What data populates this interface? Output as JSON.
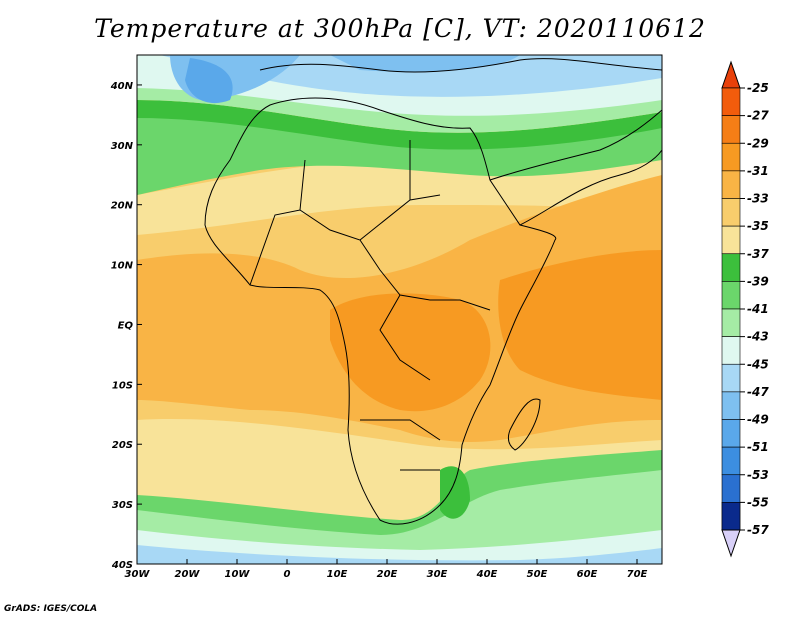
{
  "title": "Temperature at 300hPa [C], VT: 2020110612",
  "credit": "GrADS: IGES/COLA",
  "map": {
    "lon_range": [
      -30,
      75
    ],
    "lat_range": [
      -40,
      45
    ],
    "lon_ticks": [
      {
        "value": -30,
        "label": "30W"
      },
      {
        "value": -20,
        "label": "20W"
      },
      {
        "value": -10,
        "label": "10W"
      },
      {
        "value": 0,
        "label": "0"
      },
      {
        "value": 10,
        "label": "10E"
      },
      {
        "value": 20,
        "label": "20E"
      },
      {
        "value": 30,
        "label": "30E"
      },
      {
        "value": 40,
        "label": "40E"
      },
      {
        "value": 50,
        "label": "50E"
      },
      {
        "value": 60,
        "label": "60E"
      },
      {
        "value": 70,
        "label": "70E"
      }
    ],
    "lat_ticks": [
      {
        "value": 40,
        "label": "40N"
      },
      {
        "value": 30,
        "label": "30N"
      },
      {
        "value": 20,
        "label": "20N"
      },
      {
        "value": 10,
        "label": "10N"
      },
      {
        "value": 0,
        "label": "EQ"
      },
      {
        "value": -10,
        "label": "10S"
      },
      {
        "value": -20,
        "label": "20S"
      },
      {
        "value": -30,
        "label": "30S"
      },
      {
        "value": -40,
        "label": "40S"
      }
    ]
  },
  "colorbar": {
    "levels": [
      {
        "label": "-25",
        "color": "#f25c0c"
      },
      {
        "label": "-27",
        "color": "#f57e16"
      },
      {
        "label": "-29",
        "color": "#f79a22"
      },
      {
        "label": "-31",
        "color": "#f9b445"
      },
      {
        "label": "-33",
        "color": "#f8cd6c"
      },
      {
        "label": "-35",
        "color": "#f8e399"
      },
      {
        "label": "-37",
        "color": "#3cbf3c"
      },
      {
        "label": "-39",
        "color": "#6bd66b"
      },
      {
        "label": "-41",
        "color": "#a5eca5"
      },
      {
        "label": "-43",
        "color": "#dff8f0"
      },
      {
        "label": "-45",
        "color": "#a8d8f5"
      },
      {
        "label": "-47",
        "color": "#7ec0f0"
      },
      {
        "label": "-49",
        "color": "#5aa8ea"
      },
      {
        "label": "-51",
        "color": "#3c8ee0"
      },
      {
        "label": "-53",
        "color": "#2a70d0"
      },
      {
        "label": "-55",
        "color": "#1a52b8"
      },
      {
        "label": "-57",
        "color": "#0a2a8c"
      }
    ],
    "top_cap_color": "#e8400a",
    "bottom_cap_color": "#d8d0f8"
  }
}
